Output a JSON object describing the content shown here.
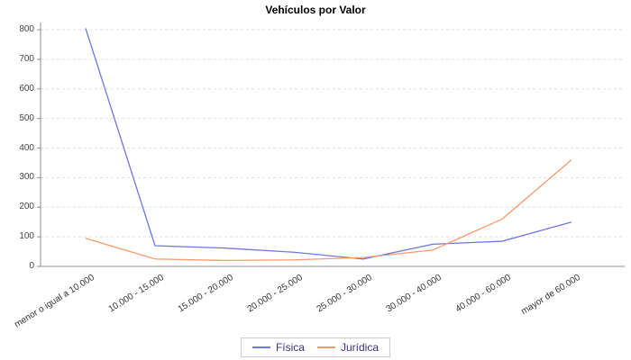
{
  "chart_data": {
    "type": "line",
    "title": "Vehículos por Valor",
    "categories": [
      "menor o igual a 10.000",
      "10.000 - 15.000",
      "15.000 - 20.000",
      "20.000 - 25.000",
      "25.000 - 30.000",
      "30.000 - 40.000",
      "40.000 - 60.000",
      "mayor de 60.000"
    ],
    "series": [
      {
        "name": "Física",
        "color": "#6d78de",
        "values": [
          805,
          70,
          62,
          48,
          25,
          75,
          85,
          150
        ]
      },
      {
        "name": "Jurídica",
        "color": "#f59a6b",
        "values": [
          95,
          25,
          20,
          22,
          30,
          55,
          160,
          360
        ]
      }
    ],
    "xlabel": "",
    "ylabel": "",
    "ylim": [
      0,
      800
    ],
    "ytick_step": 100,
    "grid": "dashed horizontal",
    "legend_position": "bottom-center",
    "colors": {
      "gridline": "#dddddd",
      "axis": "#8f8f8f",
      "ytick_text": "#444444",
      "xtick_text": "#333333",
      "legend_text": "#3a2f80",
      "background": "#ffffff"
    }
  }
}
